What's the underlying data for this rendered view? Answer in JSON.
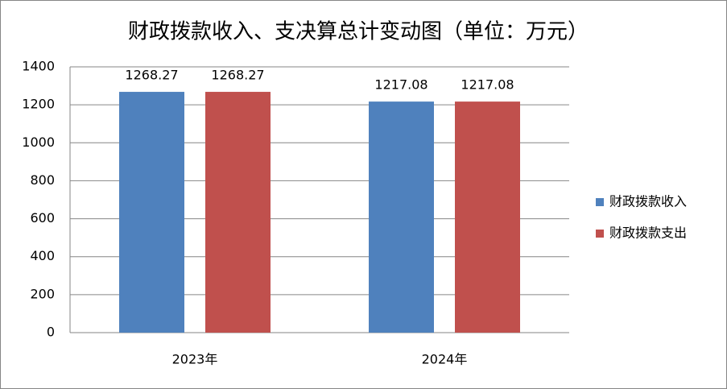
{
  "chart_data": {
    "type": "bar",
    "title": "财政拨款收入、支决算总计变动图（单位：万元）",
    "categories": [
      "2023年",
      "2024年"
    ],
    "series": [
      {
        "name": "财政拨款收入",
        "color": "#4f81bd",
        "values": [
          1268.27,
          1217.08
        ]
      },
      {
        "name": "财政拨款支出",
        "color": "#c0504d",
        "values": [
          1268.27,
          1217.08
        ]
      }
    ],
    "ylim": [
      0,
      1400
    ],
    "yticks": [
      0,
      200,
      400,
      600,
      800,
      1000,
      1200,
      1400
    ],
    "grid": true,
    "legend": "right"
  }
}
